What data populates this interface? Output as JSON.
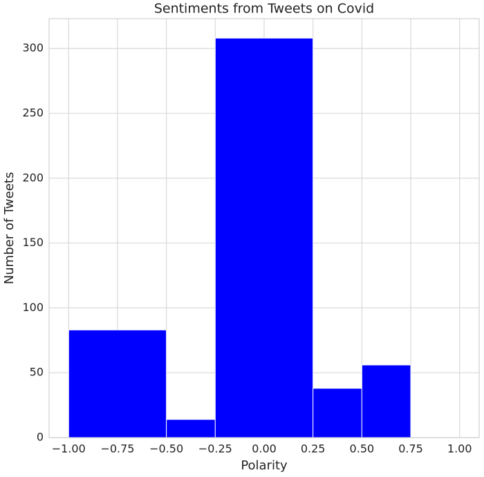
{
  "chart_data": {
    "type": "histogram",
    "title": "Sentiments from Tweets on Covid",
    "x_label": "Polarity",
    "y_label": "Number of Tweets",
    "bins": [
      -1,
      -0.5,
      -0.25,
      0.25,
      0.5,
      0.75
    ],
    "values": [
      83,
      14,
      308,
      38,
      56
    ],
    "color": "#0000ff",
    "xlim": [
      -1.1,
      1.1
    ],
    "xticks": [
      {
        "value": -1,
        "label": "−1.00"
      },
      {
        "value": -0.75,
        "label": "−0.75"
      },
      {
        "value": -0.5,
        "label": "−0.50"
      },
      {
        "value": -0.25,
        "label": "−0.25"
      },
      {
        "value": 0,
        "label": "0.00"
      },
      0.25,
      {
        "value": 0.5,
        "label": "0.50"
      },
      0.75,
      {
        "value": 1,
        "label": "1.00"
      }
    ],
    "ylim": [
      0,
      323
    ],
    "yticks": [
      0,
      50,
      100,
      150,
      200,
      250,
      300
    ],
    "grid": true
  }
}
